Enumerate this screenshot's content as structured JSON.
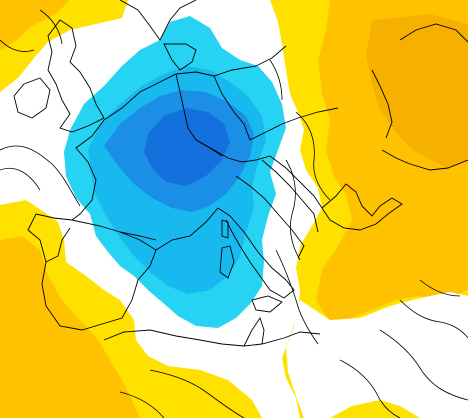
{
  "map": {
    "palette": {
      "background": "#ffffff",
      "warm_yellow": "#ffe100",
      "warm_gold": "#ffc200",
      "warm_orange": "#f6b100",
      "cool_light": "#27d3f2",
      "cool_mid": "#18b9ee",
      "cool_deep": "#1b8fe6",
      "cool_deepest": "#1470dc",
      "coast_line": "#000000"
    }
  }
}
